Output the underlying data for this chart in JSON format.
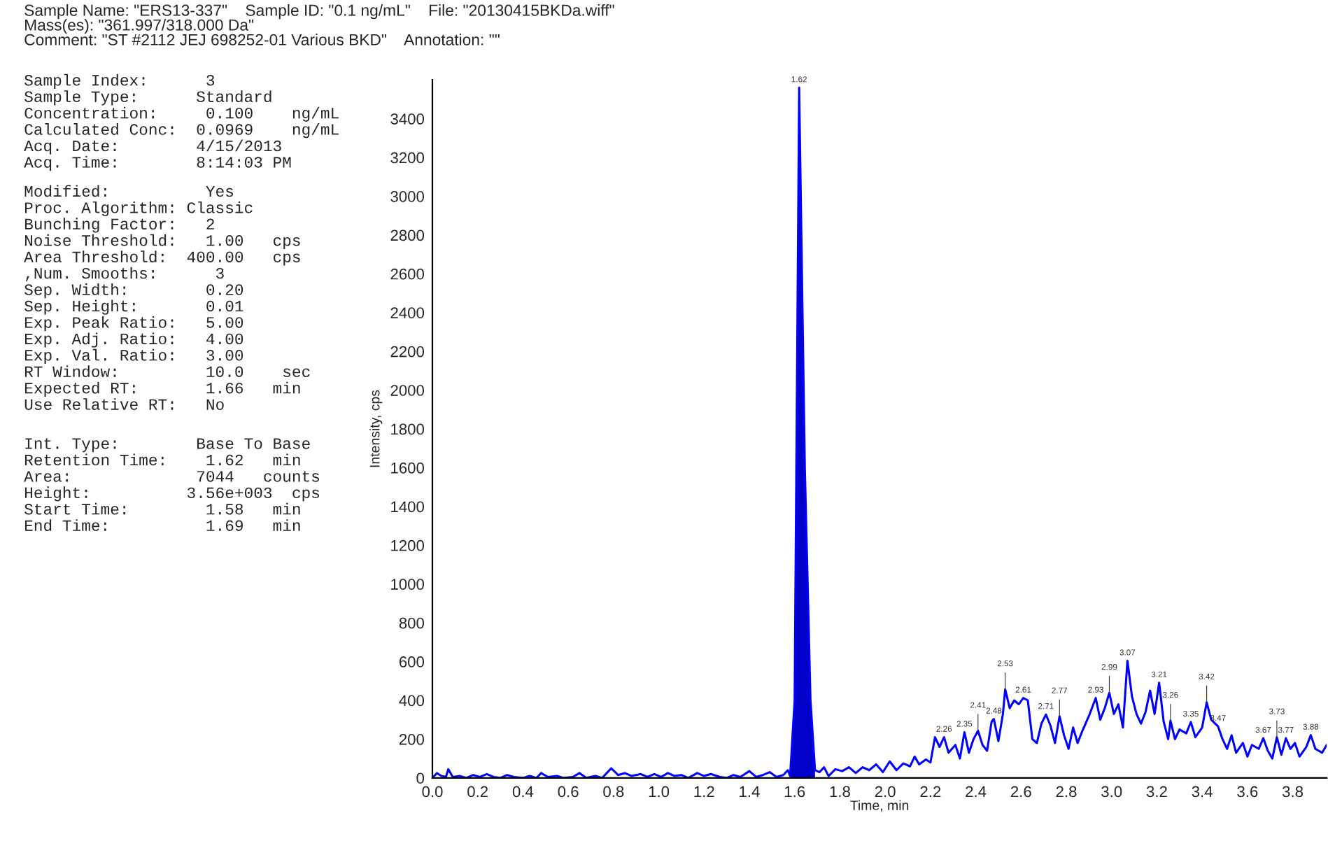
{
  "chart_data": [
    {
      "type": "other",
      "annotations": [
        "Sample Name: \"ERS13-337\"    Sample ID: \"0.1 ng/mL\"    File: \"20130415BKDa.wiff\"",
        "Mass(es): \"361.997/318.000 Da\"",
        "Comment: \"ST #2112 JEJ 698252-01 Various BKD\"    Annotation: \"\""
      ]
    },
    {
      "type": "other",
      "annotations": [
        "Sample Index:      3",
        "Sample Type:      Standard",
        "Concentration:     0.100    ng/mL",
        "Calculated Conc:  0.0969    ng/mL",
        "Acq. Date:        4/15/2013",
        "Acq. Time:        8:14:03 PM"
      ]
    },
    {
      "type": "other",
      "annotations": [
        "Modified:          Yes",
        "Proc. Algorithm: Classic",
        "Bunching Factor:   2",
        "Noise Threshold:   1.00   cps",
        "Area Threshold:  400.00   cps",
        ",Num. Smooths:      3",
        "Sep. Width:        0.20",
        "Sep. Height:       0.01",
        "Exp. Peak Ratio:   5.00",
        "Exp. Adj. Ratio:   4.00",
        "Exp. Val. Ratio:   3.00",
        "RT Window:         10.0    sec",
        "Expected RT:       1.66   min",
        "Use Relative RT:   No"
      ]
    },
    {
      "type": "other",
      "annotations": [
        "Int. Type:        Base To Base",
        "Retention Time:    1.62   min",
        "Area:             7044   counts",
        "Height:          3.56e+003  cps",
        "Start Time:        1.58   min",
        "End Time:          1.69   min"
      ]
    },
    {
      "type": "line",
      "xlabel": "Time, min",
      "ylabel": "Intensity, cps",
      "xlim": [
        0,
        3.95
      ],
      "ylim": [
        0,
        3600
      ],
      "xticks": [
        {
          "value": 0,
          "label": "0.0"
        },
        0.2,
        0.4,
        0.6,
        0.8,
        {
          "value": 1,
          "label": "1.0"
        },
        1.2,
        1.4,
        1.6,
        1.8,
        {
          "value": 2,
          "label": "2.0"
        },
        2.2,
        2.4,
        2.6,
        2.8,
        {
          "value": 3,
          "label": "3.0"
        },
        3.2,
        3.4,
        3.6,
        3.8
      ],
      "yticks": [
        0,
        200,
        400,
        600,
        800,
        1000,
        1200,
        1400,
        1600,
        1800,
        2000,
        2200,
        2400,
        2600,
        2800,
        3000,
        3200,
        3400
      ],
      "grid": false,
      "legend": false,
      "marker": "none",
      "line_style": "solid",
      "series": [
        {
          "type": "line",
          "color": "#0000ff",
          "x": [
            0.0,
            0.02,
            0.04,
            0.06,
            0.07,
            0.09,
            0.12,
            0.15,
            0.18,
            0.21,
            0.24,
            0.27,
            0.3,
            0.33,
            0.36,
            0.4,
            0.43,
            0.46,
            0.48,
            0.51,
            0.55,
            0.58,
            0.62,
            0.65,
            0.68,
            0.72,
            0.75,
            0.79,
            0.82,
            0.85,
            0.88,
            0.92,
            0.95,
            0.98,
            1.01,
            1.04,
            1.07,
            1.1,
            1.13,
            1.17,
            1.2,
            1.23,
            1.27,
            1.3,
            1.33,
            1.36,
            1.4,
            1.43,
            1.46,
            1.49,
            1.52,
            1.55,
            1.57,
            1.58,
            1.6,
            1.62,
            1.645,
            1.67,
            1.69,
            1.71,
            1.73,
            1.75,
            1.78,
            1.81,
            1.84,
            1.87,
            1.9,
            1.93,
            1.96,
            1.99,
            2.02,
            2.05,
            2.08,
            2.11,
            2.13,
            2.15,
            2.18,
            2.2,
            2.22,
            2.24,
            2.26,
            2.28,
            2.31,
            2.33,
            2.35,
            2.37,
            2.39,
            2.41,
            2.43,
            2.45,
            2.47,
            2.48,
            2.5,
            2.52,
            2.53,
            2.55,
            2.57,
            2.59,
            2.61,
            2.63,
            2.65,
            2.67,
            2.69,
            2.71,
            2.73,
            2.75,
            2.77,
            2.79,
            2.81,
            2.83,
            2.85,
            2.87,
            2.9,
            2.93,
            2.95,
            2.97,
            2.99,
            3.01,
            3.03,
            3.05,
            3.07,
            3.09,
            3.11,
            3.13,
            3.15,
            3.17,
            3.19,
            3.21,
            3.23,
            3.25,
            3.26,
            3.28,
            3.3,
            3.33,
            3.35,
            3.37,
            3.4,
            3.42,
            3.44,
            3.47,
            3.49,
            3.51,
            3.53,
            3.55,
            3.58,
            3.6,
            3.62,
            3.65,
            3.67,
            3.69,
            3.71,
            3.73,
            3.75,
            3.77,
            3.79,
            3.81,
            3.83,
            3.86,
            3.88,
            3.9,
            3.93,
            3.95
          ],
          "values": [
            0,
            25,
            10,
            5,
            45,
            5,
            10,
            0,
            15,
            5,
            20,
            5,
            0,
            15,
            5,
            0,
            10,
            0,
            25,
            5,
            10,
            0,
            5,
            25,
            0,
            10,
            0,
            50,
            15,
            25,
            10,
            20,
            5,
            20,
            5,
            25,
            10,
            15,
            0,
            25,
            10,
            20,
            5,
            0,
            15,
            5,
            35,
            5,
            15,
            30,
            5,
            15,
            40,
            10,
            400,
            3560,
            1600,
            400,
            40,
            30,
            55,
            10,
            45,
            35,
            55,
            25,
            55,
            40,
            70,
            30,
            85,
            40,
            75,
            60,
            110,
            70,
            95,
            80,
            210,
            160,
            210,
            130,
            170,
            100,
            236,
            130,
            200,
            243,
            170,
            140,
            290,
            304,
            190,
            330,
            457,
            360,
            400,
            380,
            412,
            400,
            200,
            180,
            280,
            327,
            270,
            180,
            318,
            220,
            150,
            260,
            180,
            240,
            320,
            412,
            300,
            360,
            439,
            330,
            380,
            260,
            604,
            420,
            330,
            280,
            340,
            450,
            330,
            491,
            290,
            200,
            295,
            200,
            250,
            230,
            288,
            210,
            260,
            390,
            300,
            266,
            200,
            150,
            220,
            130,
            180,
            110,
            170,
            150,
            205,
            140,
            100,
            210,
            120,
            205,
            150,
            180,
            110,
            160,
            221,
            150,
            130,
            170
          ]
        },
        {
          "type": "area",
          "color": "#0000c8",
          "x": [
            1.58,
            1.6,
            1.62,
            1.645,
            1.67,
            1.69
          ],
          "values": [
            10,
            400,
            3560,
            1600,
            400,
            40
          ]
        }
      ],
      "annotations": [
        {
          "text": "1.62",
          "x": 1.62,
          "y": 3560
        },
        {
          "text": "2.26",
          "x": 2.26,
          "y": 210
        },
        {
          "text": "2.35",
          "x": 2.35,
          "y": 236
        },
        {
          "text": "2.41",
          "x": 2.41,
          "y": 243
        },
        {
          "text": "2.48",
          "x": 2.48,
          "y": 304
        },
        {
          "text": "2.53",
          "x": 2.53,
          "y": 457
        },
        {
          "text": "2.61",
          "x": 2.61,
          "y": 412
        },
        {
          "text": "2.71",
          "x": 2.71,
          "y": 327
        },
        {
          "text": "2.77",
          "x": 2.77,
          "y": 318
        },
        {
          "text": "2.93",
          "x": 2.93,
          "y": 412
        },
        {
          "text": "2.99",
          "x": 2.99,
          "y": 439
        },
        {
          "text": "3.07",
          "x": 3.07,
          "y": 604
        },
        {
          "text": "3.21",
          "x": 3.21,
          "y": 491
        },
        {
          "text": "3.26",
          "x": 3.26,
          "y": 295
        },
        {
          "text": "3.35",
          "x": 3.35,
          "y": 288
        },
        {
          "text": "3.42",
          "x": 3.42,
          "y": 390
        },
        {
          "text": "3.47",
          "x": 3.47,
          "y": 266
        },
        {
          "text": "3.67",
          "x": 3.67,
          "y": 205
        },
        {
          "text": "3.73",
          "x": 3.73,
          "y": 210
        },
        {
          "text": "3.77",
          "x": 3.77,
          "y": 205
        },
        {
          "text": "3.88",
          "x": 3.88,
          "y": 221
        }
      ]
    }
  ]
}
